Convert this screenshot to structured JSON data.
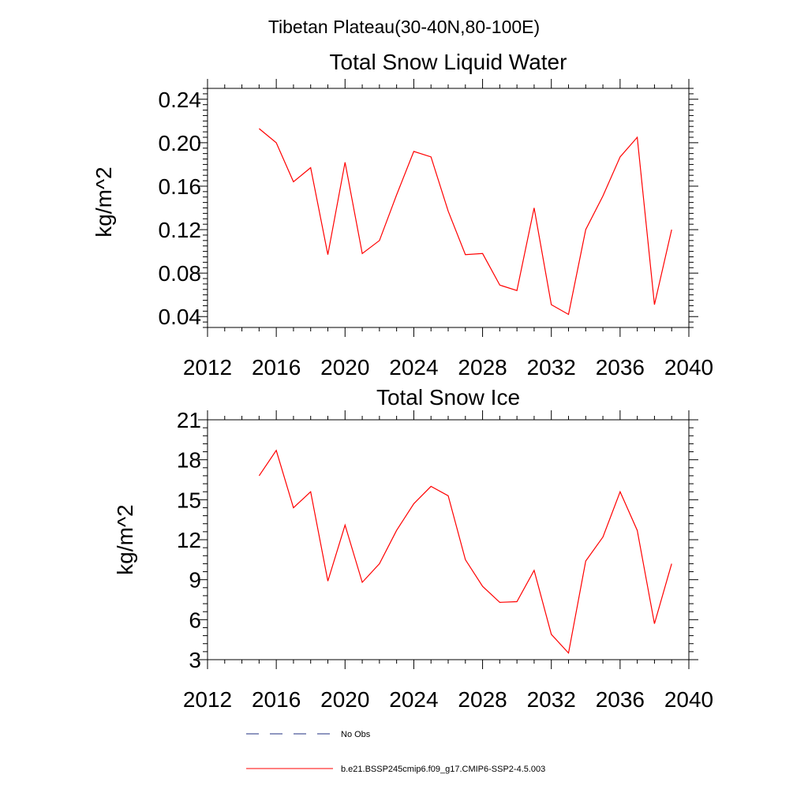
{
  "figure": {
    "suptitle": "Tibetan Plateau(30-40N,80-100E)"
  },
  "legend": [
    {
      "label": "No Obs",
      "color": "#1f2f80",
      "dashed": true
    },
    {
      "label": "b.e21.BSSP245cmip6.f09_g17.CMIP6-SSP2-4.5.003",
      "color": "#ff0000",
      "dashed": false
    }
  ],
  "chart_data": [
    {
      "type": "line",
      "title": "Total Snow Liquid Water",
      "xlabel": "",
      "ylabel": "kg/m^2",
      "xlim": [
        2012,
        2040
      ],
      "ylim": [
        0.03,
        0.25
      ],
      "xticks": [
        2012,
        2016,
        2020,
        2024,
        2028,
        2032,
        2036,
        2040
      ],
      "xtick_labels": [
        "2012",
        "2016",
        "2020",
        "2024",
        "2028",
        "2032",
        "2036",
        "2040"
      ],
      "yticks": [
        0.04,
        0.08,
        0.12,
        0.16,
        0.2,
        0.24
      ],
      "ytick_labels": [
        "0.04",
        "0.08",
        "0.12",
        "0.16",
        "0.20",
        "0.24"
      ],
      "series": [
        {
          "name": "b.e21.BSSP245cmip6.f09_g17.CMIP6-SSP2-4.5.003",
          "color": "#ff0000",
          "x": [
            2015,
            2016,
            2017,
            2018,
            2019,
            2020,
            2021,
            2022,
            2023,
            2024,
            2025,
            2026,
            2027,
            2028,
            2029,
            2030,
            2031,
            2032,
            2033,
            2034,
            2035,
            2036,
            2037,
            2038,
            2039
          ],
          "y": [
            0.213,
            0.2,
            0.164,
            0.177,
            0.097,
            0.182,
            0.098,
            0.11,
            0.152,
            0.192,
            0.187,
            0.137,
            0.097,
            0.098,
            0.069,
            0.064,
            0.14,
            0.051,
            0.042,
            0.12,
            0.151,
            0.187,
            0.205,
            0.051,
            0.12
          ]
        }
      ]
    },
    {
      "type": "line",
      "title": "Total Snow Ice",
      "xlabel": "",
      "ylabel": "kg/m^2",
      "xlim": [
        2012,
        2040
      ],
      "ylim": [
        3,
        21
      ],
      "xticks": [
        2012,
        2016,
        2020,
        2024,
        2028,
        2032,
        2036,
        2040
      ],
      "xtick_labels": [
        "2012",
        "2016",
        "2020",
        "2024",
        "2028",
        "2032",
        "2036",
        "2040"
      ],
      "yticks": [
        3,
        6,
        9,
        12,
        15,
        18,
        21
      ],
      "ytick_labels": [
        "3",
        "6",
        "9",
        "12",
        "15",
        "18",
        "21"
      ],
      "series": [
        {
          "name": "b.e21.BSSP245cmip6.f09_g17.CMIP6-SSP2-4.5.003",
          "color": "#ff0000",
          "x": [
            2015,
            2016,
            2017,
            2018,
            2019,
            2020,
            2021,
            2022,
            2023,
            2024,
            2025,
            2026,
            2027,
            2028,
            2029,
            2030,
            2031,
            2032,
            2033,
            2034,
            2035,
            2036,
            2037,
            2038,
            2039
          ],
          "y": [
            16.8,
            18.7,
            14.4,
            15.6,
            8.9,
            13.1,
            8.8,
            10.2,
            12.7,
            14.7,
            16.0,
            15.3,
            10.5,
            8.5,
            7.3,
            7.35,
            9.7,
            4.9,
            3.5,
            10.4,
            12.2,
            15.6,
            12.7,
            5.7,
            10.2
          ]
        }
      ]
    }
  ]
}
